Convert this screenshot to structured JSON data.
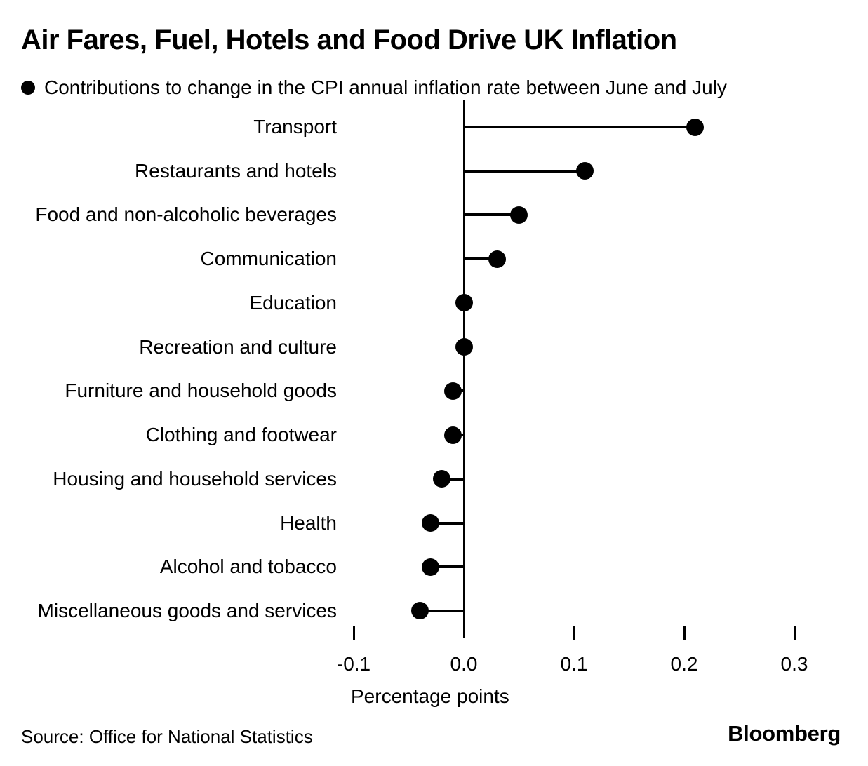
{
  "colors": {
    "foreground": "#000000",
    "background": "#ffffff"
  },
  "chart_data": {
    "type": "bar",
    "style": "horizontal-lollipop",
    "title": "Air Fares, Fuel, Hotels and Food Drive UK Inflation",
    "legend_label": "Contributions to change in the CPI annual inflation rate between June and July",
    "legend_position": "top-left",
    "categories": [
      "Transport",
      "Restaurants and hotels",
      "Food and non-alcoholic beverages",
      "Communication",
      "Education",
      "Recreation and culture",
      "Furniture and household goods",
      "Clothing and footwear",
      "Housing and household services",
      "Health",
      "Alcohol and tobacco",
      "Miscellaneous goods and services"
    ],
    "values": [
      0.21,
      0.11,
      0.05,
      0.03,
      0.0,
      0.0,
      -0.01,
      -0.01,
      -0.02,
      -0.03,
      -0.03,
      -0.04
    ],
    "xlabel": "Percentage points",
    "ylabel": "",
    "xlim": [
      -0.145,
      0.345
    ],
    "baseline": 0,
    "grid": false,
    "x_ticks": {
      "values": [
        -0.1,
        0.0,
        0.1,
        0.2,
        0.3
      ],
      "labels": [
        "-0.1",
        "0.0",
        "0.1",
        "0.2",
        "0.3"
      ]
    }
  },
  "footer": {
    "source": "Source: Office for National Statistics",
    "brand": "Bloomberg"
  }
}
